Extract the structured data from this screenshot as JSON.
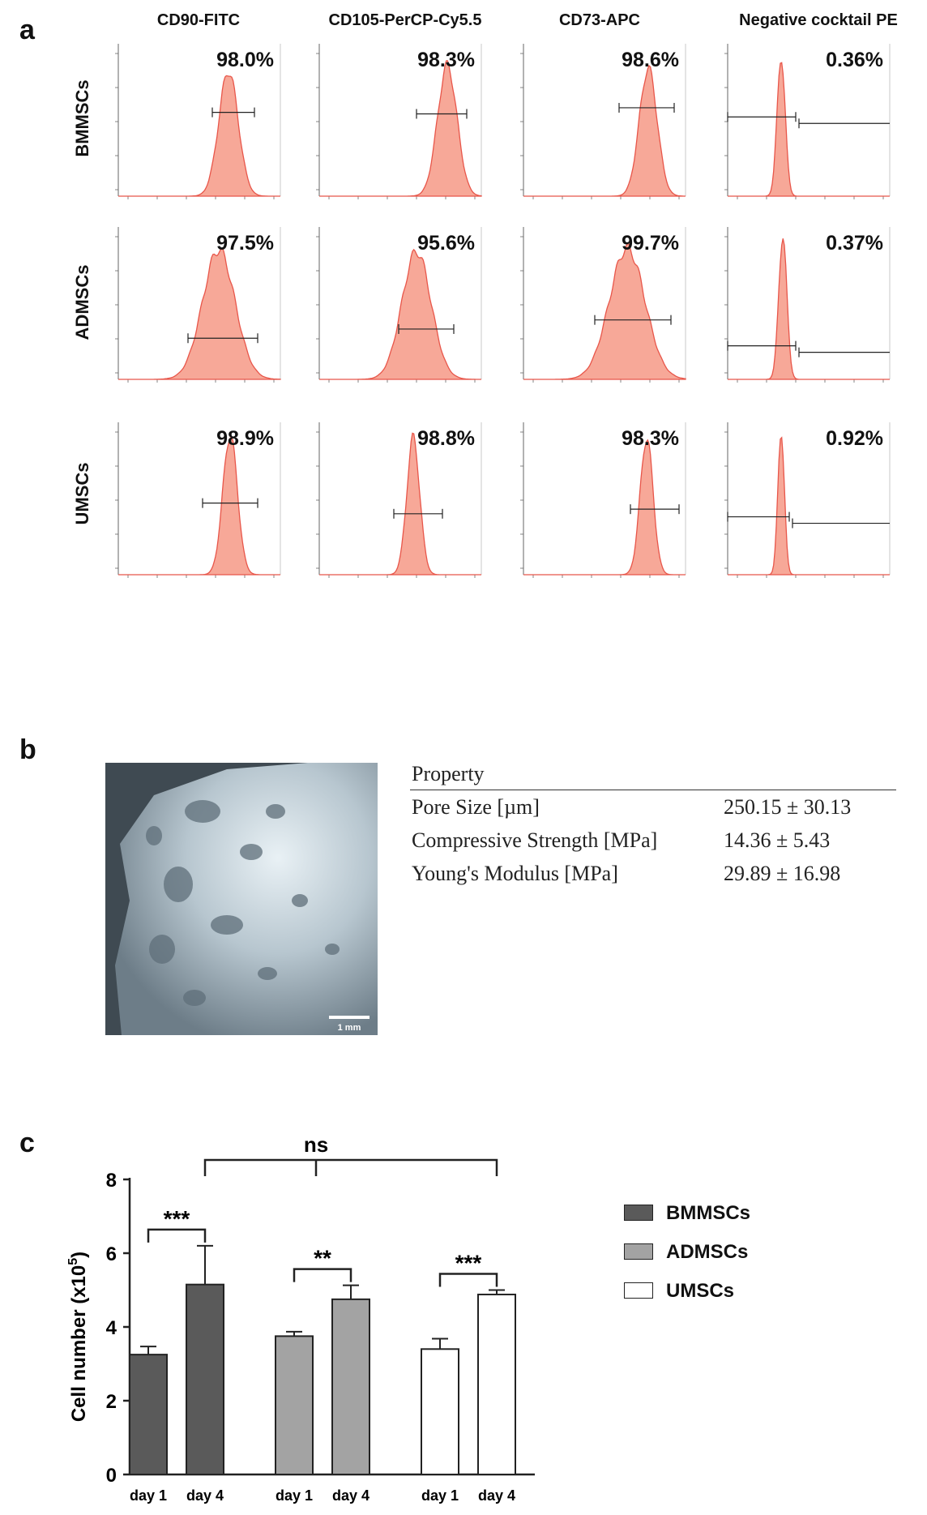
{
  "panels": {
    "a": "a",
    "b": "b",
    "c": "c"
  },
  "flow": {
    "columns": [
      "CD90-FITC",
      "CD105-PerCP-Cy5.5",
      "CD73-APC",
      "Negative cocktail PE"
    ],
    "rows": [
      "BMMSCs",
      "ADMSCs",
      "UMSCs"
    ],
    "percentages": [
      [
        "98.0%",
        "98.3%",
        "98.6%",
        "0.36%"
      ],
      [
        "97.5%",
        "95.6%",
        "99.7%",
        "0.37%"
      ],
      [
        "98.9%",
        "98.8%",
        "98.3%",
        "0.92%"
      ]
    ]
  },
  "scaffold": {
    "scale_bar_label": "1 mm"
  },
  "properties": {
    "header": "Property",
    "rows": [
      {
        "name": "Pore Size [µm]",
        "value": "250.15 ± 30.13"
      },
      {
        "name": "Compressive Strength [MPa]",
        "value": "14.36 ± 5.43"
      },
      {
        "name": "Young's Modulus [MPa]",
        "value": "29.89 ± 16.98"
      }
    ]
  },
  "colors": {
    "hist_fill": "#f7a898",
    "hist_line": "#e8564a",
    "bm": "#5a5a5a",
    "ad": "#a3a3a3",
    "um": "#ffffff"
  },
  "chart_data": {
    "type": "bar",
    "ylabel": "Cell number (x10",
    "ylabel_sup": "5",
    "ylabel_end": ")",
    "ylim": [
      0,
      8
    ],
    "yticks": [
      "0",
      "2",
      "4",
      "6",
      "8"
    ],
    "series": [
      {
        "name": "BMMSCs",
        "categories": [
          "day 1",
          "day 4"
        ],
        "values": [
          3.25,
          5.15
        ],
        "errors": [
          0.22,
          1.05
        ],
        "sig": "***"
      },
      {
        "name": "ADMSCs",
        "categories": [
          "day 1",
          "day 4"
        ],
        "values": [
          3.75,
          4.75
        ],
        "errors": [
          0.12,
          0.38
        ],
        "sig": "**"
      },
      {
        "name": "UMSCs",
        "categories": [
          "day 1",
          "day 4"
        ],
        "values": [
          3.4,
          4.88
        ],
        "errors": [
          0.28,
          0.12
        ],
        "sig": "***"
      }
    ],
    "comparison_label": "ns",
    "legend": [
      "BMMSCs",
      "ADMSCs",
      "UMSCs"
    ]
  }
}
